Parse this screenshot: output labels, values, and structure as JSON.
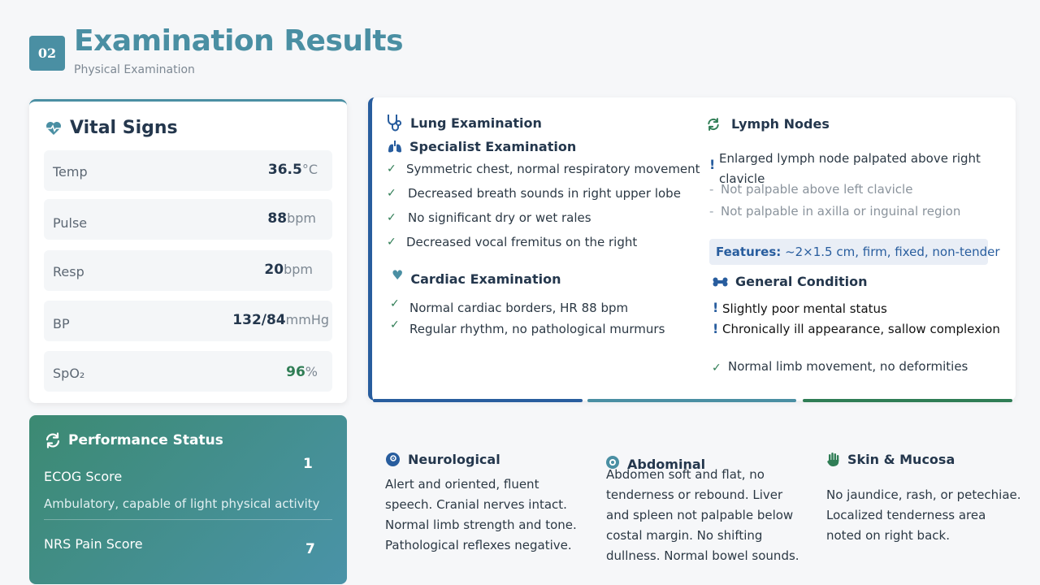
{
  "header": {
    "badge": "02",
    "title": "Examination Results",
    "subtitle": "Physical Examination"
  },
  "vitals": {
    "title": "Vital Signs",
    "rows": [
      {
        "label": "Temp",
        "value": "36.5",
        "unit": "°C"
      },
      {
        "label": "Pulse",
        "value": "88",
        "unit": "bpm"
      },
      {
        "label": "Resp",
        "value": "20",
        "unit": "bpm"
      },
      {
        "label": "BP",
        "value": "132/84",
        "unit": "mmHg"
      },
      {
        "label": "SpO₂",
        "value": "96",
        "unit": "%"
      }
    ]
  },
  "performance": {
    "title": "Performance Status",
    "ecog_label": "ECOG Score",
    "ecog_value": "1",
    "ecog_desc": "Ambulatory, capable of light physical activity",
    "nrs_label": "NRS Pain Score",
    "nrs_value": "7"
  },
  "lung": {
    "title": "Lung Examination",
    "specialist_title": "Specialist Examination",
    "items": [
      "Symmetric chest, normal respiratory movement",
      "Decreased breath sounds in right upper lobe",
      "No significant dry or wet rales",
      "Decreased vocal fremitus on the right"
    ]
  },
  "cardiac": {
    "title": "Cardiac Examination",
    "items": [
      "Normal cardiac borders, HR 88 bpm",
      "Regular rhythm, no pathological murmurs"
    ]
  },
  "lymph": {
    "title": "Lymph Nodes",
    "finding_line1": "Enlarged lymph node palpated above right",
    "finding_line2": "clavicle",
    "negatives": [
      "Not palpable above left clavicle",
      "Not palpable in axilla or inguinal region"
    ],
    "features_label": "Features:",
    "features_value": "~2×1.5 cm, firm, fixed, non-tender"
  },
  "general": {
    "title": "General Condition",
    "warnings": [
      "Slightly poor mental status",
      "Chronically ill appearance, sallow complexion"
    ],
    "normal": "Normal limb movement, no deformities"
  },
  "bottom": {
    "neuro": {
      "title": "Neurological",
      "lines": [
        "Alert and oriented, fluent",
        "speech. Cranial nerves intact.",
        "Normal limb strength and tone.",
        "Pathological reflexes negative."
      ]
    },
    "abdominal": {
      "title": "Abdominal",
      "lines": [
        "Abdomen soft and flat, no",
        "tenderness or rebound. Liver",
        "and spleen not palpable below",
        "costal margin. No shifting",
        "dullness. Normal bowel sounds."
      ]
    },
    "skin": {
      "title": "Skin & Mucosa",
      "lines": [
        "No jaundice, rash, or petechiae.",
        "Localized tenderness area",
        "noted on right back."
      ]
    }
  },
  "colors": {
    "teal": "#4a8fa3",
    "navy": "#285d9e",
    "green": "#2f7d55"
  }
}
